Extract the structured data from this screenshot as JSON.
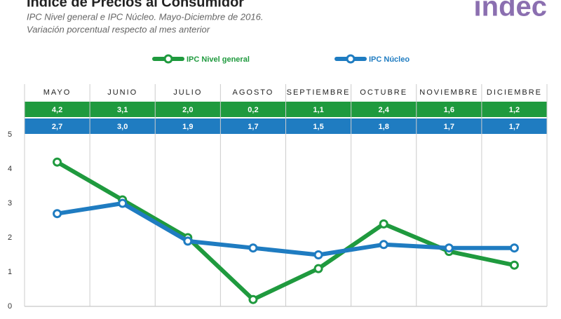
{
  "logo": "indec",
  "chart_data": {
    "type": "line",
    "title": "Índice de Precios al Consumidor",
    "subtitle": [
      "IPC Nivel general e IPC Núcleo. Mayo-Diciembre de 2016.",
      "Variación porcentual respecto al mes anterior"
    ],
    "categories": [
      "MAYO",
      "JUNIO",
      "JULIO",
      "AGOSTO",
      "SEPTIEMBRE",
      "OCTUBRE",
      "NOVIEMBRE",
      "DICIEMBRE"
    ],
    "series": [
      {
        "name": "IPC Nivel general",
        "color": "#1f9a3e",
        "values": [
          4.2,
          3.1,
          2.0,
          0.2,
          1.1,
          2.4,
          1.6,
          1.2
        ],
        "value_labels": [
          "4,2",
          "3,1",
          "2,0",
          "0,2",
          "1,1",
          "2,4",
          "1,6",
          "1,2"
        ]
      },
      {
        "name": "IPC Núcleo",
        "color": "#1f7cc1",
        "values": [
          2.7,
          3.0,
          1.9,
          1.7,
          1.5,
          1.8,
          1.7,
          1.7
        ],
        "value_labels": [
          "2,7",
          "3,0",
          "1,9",
          "1,7",
          "1,5",
          "1,8",
          "1,7",
          "1,7"
        ]
      }
    ],
    "ylim": [
      0,
      5
    ],
    "yticks": [
      0,
      1,
      2,
      3,
      4,
      5
    ],
    "grid": true
  }
}
